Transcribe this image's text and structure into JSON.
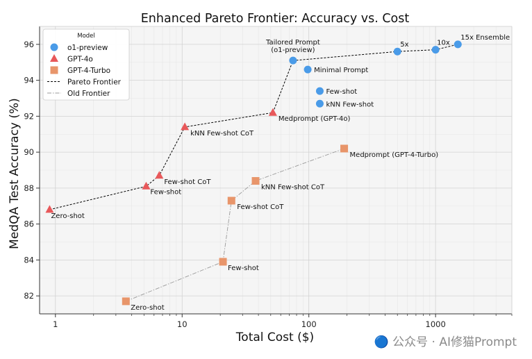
{
  "watermark": "🔵 公众号 · AI修猫Prompt",
  "chart_data": {
    "type": "scatter",
    "title": "Enhanced Pareto Frontier: Accuracy vs. Cost",
    "xlabel": "Total Cost ($)",
    "ylabel": "MedQA Test Accuracy (%)",
    "xscale": "log",
    "xlim": [
      0.75,
      4000
    ],
    "ylim": [
      81,
      97
    ],
    "xticks": [
      {
        "v": 1,
        "label": "1"
      },
      {
        "v": 10,
        "label": "10"
      },
      {
        "v": 100,
        "label": "100"
      },
      {
        "v": 1000,
        "label": "1000"
      }
    ],
    "yticks": [
      82,
      84,
      86,
      88,
      90,
      92,
      94,
      96
    ],
    "grid": true,
    "legend_title": "Model",
    "legend_position": "top-left",
    "series": [
      {
        "name": "o1-preview",
        "marker": "circle",
        "color": "#4a9be8",
        "points": [
          {
            "x": 75,
            "y": 95.1,
            "label": "Tailored Prompt\n(o1-preview)"
          },
          {
            "x": 98,
            "y": 94.6,
            "label": "Minimal Prompt"
          },
          {
            "x": 122,
            "y": 93.4,
            "label": "Few-shot"
          },
          {
            "x": 122,
            "y": 92.7,
            "label": "kNN Few-shot"
          },
          {
            "x": 500,
            "y": 95.6,
            "label": "5x"
          },
          {
            "x": 1000,
            "y": 95.7,
            "label": "10x"
          },
          {
            "x": 1500,
            "y": 96.0,
            "label": "15x Ensemble"
          }
        ]
      },
      {
        "name": "GPT-4o",
        "marker": "triangle",
        "color": "#e8585a",
        "points": [
          {
            "x": 0.9,
            "y": 86.8,
            "label": "Zero-shot"
          },
          {
            "x": 5.2,
            "y": 88.1,
            "label": "Few-shot"
          },
          {
            "x": 6.6,
            "y": 88.7,
            "label": "Few-shot CoT"
          },
          {
            "x": 10.5,
            "y": 91.4,
            "label": "kNN Few-shot CoT"
          },
          {
            "x": 52,
            "y": 92.2,
            "label": "Medprompt (GPT-4o)"
          }
        ]
      },
      {
        "name": "GPT-4-Turbo",
        "marker": "square",
        "color": "#e8956a",
        "points": [
          {
            "x": 3.6,
            "y": 81.7,
            "label": "Zero-shot"
          },
          {
            "x": 21,
            "y": 83.9,
            "label": "Few-shot"
          },
          {
            "x": 24.5,
            "y": 87.3,
            "label": "Few-shot CoT"
          },
          {
            "x": 38,
            "y": 88.4,
            "label": "kNN Few-shot CoT"
          },
          {
            "x": 190,
            "y": 90.2,
            "label": "Medprompt (GPT-4-Turbo)"
          }
        ]
      }
    ],
    "lines": [
      {
        "name": "Pareto Frontier",
        "style": "dashed",
        "color": "#000000",
        "points": [
          [
            0.9,
            86.8
          ],
          [
            5.2,
            88.1
          ],
          [
            6.6,
            88.7
          ],
          [
            10.5,
            91.4
          ],
          [
            52,
            92.2
          ],
          [
            75,
            95.1
          ],
          [
            500,
            95.6
          ],
          [
            1000,
            95.7
          ],
          [
            1500,
            96.0
          ]
        ]
      },
      {
        "name": "Old Frontier",
        "style": "dashdot",
        "color": "#999999",
        "points": [
          [
            3.6,
            81.7
          ],
          [
            21,
            83.9
          ],
          [
            24.5,
            87.3
          ],
          [
            38,
            88.4
          ],
          [
            190,
            90.2
          ]
        ]
      }
    ]
  }
}
